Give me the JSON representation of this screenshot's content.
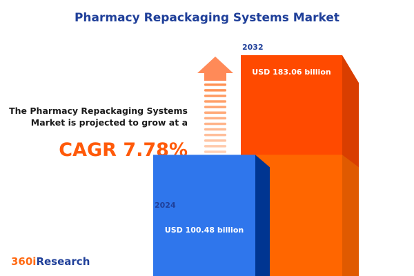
{
  "title": "Pharmacy Repackaging Systems Market",
  "description": "The Pharmacy Repackaging Systems Market is projected to grow at a",
  "cagr": "CAGR 7.78%",
  "logo": {
    "prefix": "360i",
    "suffix": "Research"
  },
  "colors": {
    "bar_2024": "#2f76ec",
    "bar_2032": "#ff4a00",
    "accent": "#ff5a0a",
    "title": "#1f3f99"
  },
  "icons": [
    "growth-arrow-icon"
  ],
  "chart_data": {
    "type": "bar",
    "categories": [
      "2024",
      "2032"
    ],
    "values": [
      100.48,
      183.06
    ],
    "unit": "USD billion",
    "labels": [
      "USD 100.48 billion",
      "USD 183.06 billion"
    ]
  }
}
